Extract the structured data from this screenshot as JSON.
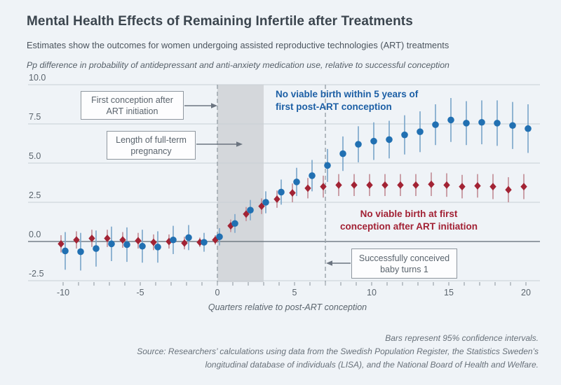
{
  "header": {
    "title": "Mental Health Effects of Remaining Infertile after Treatments",
    "subtitle": "Estimates show the outcomes for women undergoing assisted reproductive technologies (ART) treatments",
    "y_descriptor": "Pp difference in probability of antidepressant and anti-anxiety medication use, relative to successful conception"
  },
  "annotations": {
    "first_conception": "First conception after ART initiation",
    "pregnancy_length": "Length of full-term pregnancy",
    "baby_turns_one": "Successfully conceived baby turns 1",
    "blue_series_label_line1": "No viable birth within 5 years of",
    "blue_series_label_line2": "first post-ART conception",
    "red_series_label_line1": "No viable birth at first",
    "red_series_label_line2": "conception after ART initiation"
  },
  "footnotes": {
    "line1": "Bars represent 95% confidence intervals.",
    "line2": "Source: Researchers’ calculations using data from the Swedish Population Register, the Statistics Sweden’s",
    "line3": "longitudinal database of individuals (LISA), and the National Board of Health and Welfare."
  },
  "colors": {
    "background": "#eff3f7",
    "title_text": "#3b454e",
    "gray_text": "#5a646d",
    "blue_series": "#2170b2",
    "blue_ci": "#7fa8cb",
    "red_series": "#a22334",
    "red_ci": "#c4919a",
    "gridline": "#c7cfd6",
    "zero_line": "#5d6872",
    "dashed_line": "#99a1a8",
    "shaded_band": "#d4d7db",
    "tick": "#8a939b"
  },
  "chart_data": {
    "type": "scatter",
    "title": "Mental Health Effects of Remaining Infertile after Treatments",
    "xlabel": "Quarters relative to post-ART conception",
    "ylabel": "Pp difference in probability of antidepressant and anti-anxiety medication use, relative to successful conception",
    "xlim": [
      -12.5,
      21
    ],
    "ylim": [
      -2.5,
      10.0
    ],
    "y_ticks": [
      10.0,
      7.5,
      5.0,
      2.5,
      0.0,
      -2.5
    ],
    "x_ticks_labeled": [
      -10,
      -5,
      0,
      5,
      10,
      15,
      20
    ],
    "grid": "horizontal",
    "shaded_band_x": [
      0,
      3
    ],
    "dashed_lines_x": [
      0,
      7
    ],
    "error_bar_note": "Bars represent 95% confidence intervals.",
    "x": [
      -10,
      -9,
      -8,
      -7,
      -6,
      -5,
      -4,
      -3,
      -2,
      -1,
      0,
      1,
      2,
      3,
      4,
      5,
      6,
      7,
      8,
      9,
      10,
      11,
      12,
      13,
      14,
      15,
      16,
      17,
      18,
      19,
      20
    ],
    "series": [
      {
        "name": "No viable birth at first conception after ART initiation",
        "marker": "diamond",
        "color": "#a22334",
        "values": [
          -0.15,
          0.1,
          0.2,
          0.2,
          0.1,
          0.05,
          -0.05,
          0.0,
          -0.1,
          -0.05,
          0.1,
          1.0,
          1.75,
          2.25,
          2.7,
          3.1,
          3.4,
          3.5,
          3.6,
          3.6,
          3.6,
          3.6,
          3.6,
          3.6,
          3.65,
          3.6,
          3.5,
          3.55,
          3.5,
          3.3,
          3.5
        ],
        "ci_half_width": [
          0.55,
          0.55,
          0.55,
          0.55,
          0.5,
          0.5,
          0.5,
          0.45,
          0.4,
          0.3,
          0.3,
          0.4,
          0.45,
          0.5,
          0.55,
          0.6,
          0.65,
          0.7,
          0.7,
          0.7,
          0.7,
          0.7,
          0.7,
          0.7,
          0.75,
          0.75,
          0.75,
          0.75,
          0.8,
          0.8,
          0.8
        ]
      },
      {
        "name": "No viable birth within 5 years of first post-ART conception",
        "marker": "circle",
        "color": "#2170b2",
        "values": [
          -0.6,
          -0.65,
          -0.45,
          -0.15,
          -0.2,
          -0.3,
          -0.35,
          0.1,
          0.25,
          -0.05,
          0.3,
          1.15,
          2.0,
          2.5,
          3.15,
          3.8,
          4.2,
          4.85,
          5.6,
          6.2,
          6.4,
          6.5,
          6.8,
          7.0,
          7.45,
          7.75,
          7.55,
          7.6,
          7.55,
          7.4,
          7.2
        ],
        "ci_half_width": [
          1.2,
          1.2,
          1.15,
          1.1,
          1.1,
          1.05,
          1.0,
          0.9,
          0.8,
          0.6,
          0.55,
          0.6,
          0.65,
          0.7,
          0.8,
          0.9,
          1.0,
          1.05,
          1.1,
          1.15,
          1.2,
          1.2,
          1.25,
          1.3,
          1.3,
          1.4,
          1.4,
          1.4,
          1.45,
          1.5,
          1.55
        ]
      }
    ]
  }
}
